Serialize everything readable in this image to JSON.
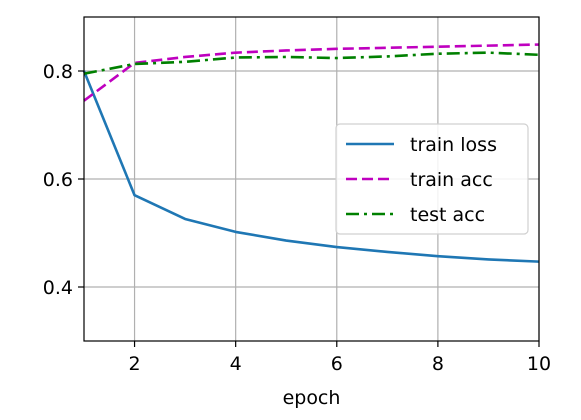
{
  "chart_data": {
    "type": "line",
    "title": "",
    "xlabel": "epoch",
    "ylabel": "",
    "xlim": [
      1,
      10
    ],
    "ylim": [
      0.3,
      0.9
    ],
    "xticks": [
      2,
      4,
      6,
      8,
      10
    ],
    "yticks": [
      0.4,
      0.6,
      0.8
    ],
    "xtick_labels": [
      "2",
      "4",
      "6",
      "8",
      "10"
    ],
    "ytick_labels": [
      "0.4",
      "0.6",
      "0.8"
    ],
    "grid": true,
    "legend_position": "center-right",
    "x": [
      1,
      2,
      3,
      4,
      5,
      6,
      7,
      8,
      9,
      10
    ],
    "series": [
      {
        "name": "train loss",
        "color": "#1f77b4",
        "style": "solid",
        "values": [
          0.8,
          0.57,
          0.526,
          0.502,
          0.486,
          0.474,
          0.465,
          0.457,
          0.451,
          0.447
        ]
      },
      {
        "name": "train acc",
        "color": "#bf00bf",
        "style": "dashed",
        "values": [
          0.745,
          0.815,
          0.826,
          0.834,
          0.838,
          0.841,
          0.843,
          0.845,
          0.847,
          0.849
        ]
      },
      {
        "name": "test acc",
        "color": "#008000",
        "style": "dashdot",
        "values": [
          0.795,
          0.813,
          0.817,
          0.825,
          0.826,
          0.824,
          0.827,
          0.832,
          0.834,
          0.83
        ]
      }
    ]
  }
}
